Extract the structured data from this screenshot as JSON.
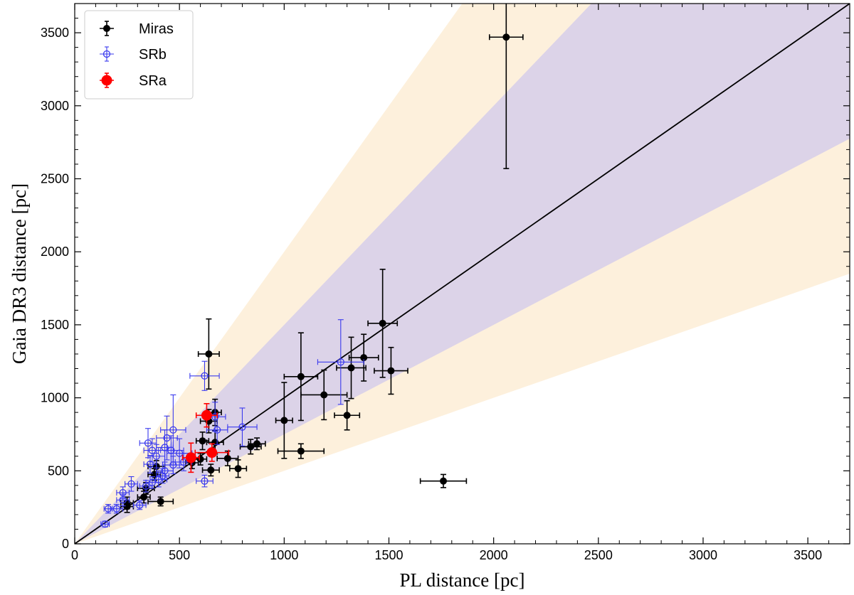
{
  "chart_data": {
    "type": "scatter",
    "title": "",
    "xlabel": "PL distance [pc]",
    "ylabel": "Gaia DR3 distance [pc]",
    "xlim": [
      0,
      3700
    ],
    "ylim": [
      0,
      3700
    ],
    "xticks": [
      0,
      500,
      1000,
      1500,
      2000,
      2500,
      3000,
      3500
    ],
    "yticks": [
      0,
      500,
      1000,
      1500,
      2000,
      2500,
      3000,
      3500
    ],
    "legend_position": "top-left",
    "colors": {
      "miras": "#000000",
      "srb": "#3a3aee",
      "sra": "#ff0000",
      "line": "#000000",
      "band_outer": "#fdf0dc",
      "band_inner": "#dcd3e8"
    },
    "bands": [
      {
        "name": "outer",
        "slope_low": 0.5,
        "slope_high": 2.0
      },
      {
        "name": "inner",
        "slope_low": 0.75,
        "slope_high": 1.5
      }
    ],
    "reference_line": {
      "slope": 1.0
    },
    "series": [
      {
        "name": "Miras",
        "marker": "filled-small",
        "points": [
          {
            "x": 2060,
            "y": 3470,
            "xerr": 80,
            "yerr": 900
          },
          {
            "x": 1760,
            "y": 430,
            "xerr": 110,
            "yerr": 45
          },
          {
            "x": 1470,
            "y": 1510,
            "xerr": 70,
            "yerr": 370
          },
          {
            "x": 1510,
            "y": 1185,
            "xerr": 80,
            "yerr": 160
          },
          {
            "x": 1380,
            "y": 1275,
            "xerr": 70,
            "yerr": 160
          },
          {
            "x": 1320,
            "y": 1205,
            "xerr": 70,
            "yerr": 210
          },
          {
            "x": 1300,
            "y": 880,
            "xerr": 60,
            "yerr": 100
          },
          {
            "x": 1190,
            "y": 1020,
            "xerr": 110,
            "yerr": 170
          },
          {
            "x": 1080,
            "y": 1145,
            "xerr": 80,
            "yerr": 300
          },
          {
            "x": 1080,
            "y": 635,
            "xerr": 110,
            "yerr": 50
          },
          {
            "x": 1000,
            "y": 845,
            "xerr": 40,
            "yerr": 260
          },
          {
            "x": 870,
            "y": 685,
            "xerr": 40,
            "yerr": 40
          },
          {
            "x": 840,
            "y": 665,
            "xerr": 50,
            "yerr": 50
          },
          {
            "x": 780,
            "y": 515,
            "xerr": 40,
            "yerr": 60
          },
          {
            "x": 730,
            "y": 585,
            "xerr": 50,
            "yerr": 50
          },
          {
            "x": 670,
            "y": 695,
            "xerr": 40,
            "yerr": 80
          },
          {
            "x": 670,
            "y": 900,
            "xerr": 30,
            "yerr": 90
          },
          {
            "x": 640,
            "y": 1300,
            "xerr": 50,
            "yerr": 240
          },
          {
            "x": 640,
            "y": 840,
            "xerr": 40,
            "yerr": 80
          },
          {
            "x": 650,
            "y": 505,
            "xerr": 40,
            "yerr": 40
          },
          {
            "x": 610,
            "y": 705,
            "xerr": 30,
            "yerr": 60
          },
          {
            "x": 600,
            "y": 580,
            "xerr": 30,
            "yerr": 40
          },
          {
            "x": 560,
            "y": 555,
            "xerr": 30,
            "yerr": 40
          },
          {
            "x": 410,
            "y": 290,
            "xerr": 60,
            "yerr": 30
          },
          {
            "x": 390,
            "y": 530,
            "xerr": 40,
            "yerr": 40
          },
          {
            "x": 380,
            "y": 475,
            "xerr": 30,
            "yerr": 40
          },
          {
            "x": 340,
            "y": 380,
            "xerr": 40,
            "yerr": 40
          },
          {
            "x": 330,
            "y": 320,
            "xerr": 30,
            "yerr": 40
          },
          {
            "x": 250,
            "y": 280,
            "xerr": 30,
            "yerr": 40
          },
          {
            "x": 250,
            "y": 255,
            "xerr": 30,
            "yerr": 40
          }
        ]
      },
      {
        "name": "SRb",
        "marker": "open-circle",
        "points": [
          {
            "x": 1270,
            "y": 1245,
            "xerr": 110,
            "yerr": 290
          },
          {
            "x": 620,
            "y": 1150,
            "xerr": 70,
            "yerr": 100
          },
          {
            "x": 800,
            "y": 800,
            "xerr": 70,
            "yerr": 130
          },
          {
            "x": 680,
            "y": 780,
            "xerr": 50,
            "yerr": 100
          },
          {
            "x": 670,
            "y": 870,
            "xerr": 50,
            "yerr": 100
          },
          {
            "x": 620,
            "y": 430,
            "xerr": 40,
            "yerr": 40
          },
          {
            "x": 470,
            "y": 780,
            "xerr": 60,
            "yerr": 240
          },
          {
            "x": 440,
            "y": 725,
            "xerr": 50,
            "yerr": 150
          },
          {
            "x": 460,
            "y": 640,
            "xerr": 60,
            "yerr": 100
          },
          {
            "x": 430,
            "y": 660,
            "xerr": 40,
            "yerr": 120
          },
          {
            "x": 500,
            "y": 620,
            "xerr": 60,
            "yerr": 100
          },
          {
            "x": 520,
            "y": 560,
            "xerr": 40,
            "yerr": 60
          },
          {
            "x": 470,
            "y": 540,
            "xerr": 50,
            "yerr": 60
          },
          {
            "x": 350,
            "y": 690,
            "xerr": 40,
            "yerr": 100
          },
          {
            "x": 370,
            "y": 640,
            "xerr": 40,
            "yerr": 80
          },
          {
            "x": 390,
            "y": 600,
            "xerr": 40,
            "yerr": 80
          },
          {
            "x": 360,
            "y": 545,
            "xerr": 30,
            "yerr": 60
          },
          {
            "x": 430,
            "y": 500,
            "xerr": 40,
            "yerr": 60
          },
          {
            "x": 420,
            "y": 465,
            "xerr": 30,
            "yerr": 50
          },
          {
            "x": 400,
            "y": 440,
            "xerr": 40,
            "yerr": 50
          },
          {
            "x": 370,
            "y": 420,
            "xerr": 30,
            "yerr": 40
          },
          {
            "x": 340,
            "y": 395,
            "xerr": 30,
            "yerr": 40
          },
          {
            "x": 310,
            "y": 265,
            "xerr": 30,
            "yerr": 30
          },
          {
            "x": 270,
            "y": 410,
            "xerr": 30,
            "yerr": 50
          },
          {
            "x": 230,
            "y": 350,
            "xerr": 30,
            "yerr": 40
          },
          {
            "x": 230,
            "y": 300,
            "xerr": 30,
            "yerr": 40
          },
          {
            "x": 200,
            "y": 240,
            "xerr": 30,
            "yerr": 30
          },
          {
            "x": 160,
            "y": 240,
            "xerr": 20,
            "yerr": 30
          },
          {
            "x": 145,
            "y": 135,
            "xerr": 20,
            "yerr": 20
          }
        ]
      },
      {
        "name": "SRa",
        "marker": "filled-large",
        "points": [
          {
            "x": 630,
            "y": 880,
            "xerr": 50,
            "yerr": 80
          },
          {
            "x": 555,
            "y": 590,
            "xerr": 40,
            "yerr": 100
          },
          {
            "x": 655,
            "y": 625,
            "xerr": 80,
            "yerr": 60
          }
        ]
      }
    ]
  }
}
